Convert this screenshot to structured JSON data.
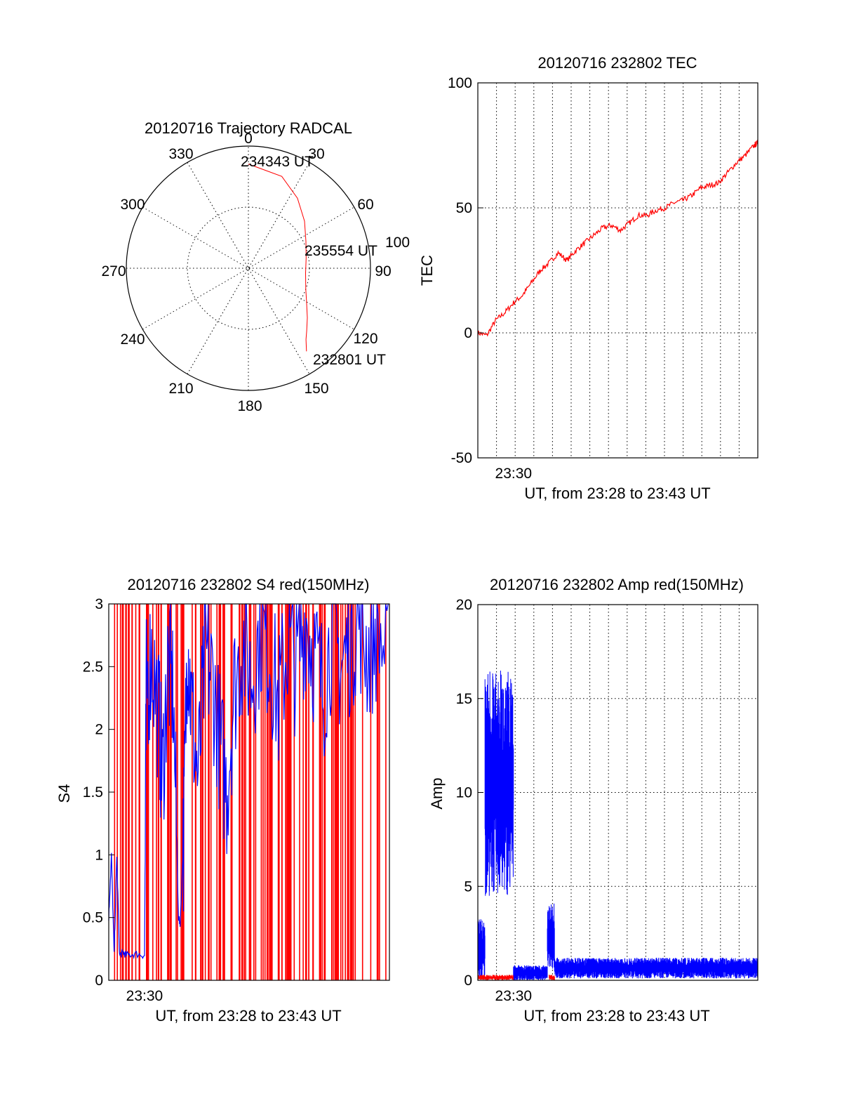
{
  "colors": {
    "red": "#ff0000",
    "blue": "#0000ff",
    "axis": "#000000"
  },
  "chart_data": [
    {
      "type": "polar",
      "title": "20120716 Trajectory RADCAL",
      "angle_labels": [
        "0",
        "30",
        "60",
        "90",
        "120",
        "150",
        "180",
        "210",
        "240",
        "270",
        "300",
        "330"
      ],
      "radius_labels": [
        "100"
      ],
      "trajectory": {
        "color": "#ff0000",
        "points": [
          {
            "az": 0,
            "r": 85.3
          },
          {
            "az": 20,
            "r": 80
          },
          {
            "az": 35,
            "r": 70
          },
          {
            "az": 50,
            "r": 60
          },
          {
            "az": 65,
            "r": 52
          },
          {
            "az": 80,
            "r": 48
          },
          {
            "az": 95,
            "r": 47
          },
          {
            "az": 110,
            "r": 50
          },
          {
            "az": 120,
            "r": 55
          },
          {
            "az": 130,
            "r": 63
          },
          {
            "az": 137,
            "r": 70
          },
          {
            "az": 141,
            "r": 75
          },
          {
            "az": 145,
            "r": 83
          }
        ]
      },
      "annotations": [
        "234343 UT",
        "235554 UT",
        "232801 UT"
      ]
    },
    {
      "type": "line",
      "title": "20120716 232802 TEC",
      "xlabel": "UT, from 23:28 to 23:43 UT",
      "ylabel": "TEC",
      "xlim_minutes": [
        0,
        15.7
      ],
      "ylim": [
        -50,
        100
      ],
      "yticks": [
        "100",
        "50",
        "0",
        "-50"
      ],
      "xticks": [
        {
          "t": 2,
          "label": "23:30"
        }
      ],
      "series": [
        {
          "color": "#ff0000",
          "x": [
            0,
            0.5,
            1,
            1.5,
            2,
            2.5,
            3,
            3.5,
            4,
            4.5,
            5,
            5.5,
            6,
            6.5,
            7,
            7.5,
            8,
            8.5,
            9,
            9.5,
            10,
            10.5,
            11,
            11.5,
            12,
            12.5,
            13,
            13.5,
            14,
            14.5,
            15,
            15.5,
            15.7
          ],
          "y": [
            0,
            -1,
            5,
            8,
            12,
            15,
            20,
            25,
            28,
            32,
            29,
            33,
            36,
            39,
            42,
            43,
            41,
            44,
            47,
            47,
            49,
            50,
            52,
            53,
            55,
            58,
            59,
            60,
            64,
            68,
            71,
            75,
            76
          ]
        }
      ]
    },
    {
      "type": "line",
      "title": "20120716 232802 S4 red(150MHz)",
      "xlabel": "UT, from 23:28 to 23:43 UT",
      "ylabel": "S4",
      "xlim_minutes": [
        0,
        15.7
      ],
      "ylim": [
        0,
        3
      ],
      "yticks": [
        "3",
        "2.5",
        "2",
        "1.5",
        "1",
        "0.5",
        "0"
      ],
      "xticks": [
        {
          "t": 2,
          "label": "23:30"
        }
      ],
      "series": [
        {
          "color": "#ff0000",
          "style": "dense vertical spikes from 0 to 3 across the whole range"
        },
        {
          "color": "#0000ff",
          "x": [
            0,
            0.15,
            0.3,
            0.45,
            0.6,
            0.8,
            1,
            1.5,
            2,
            2.1,
            2.4,
            2.8,
            3,
            3.3,
            3.6,
            3.9,
            4,
            4.2,
            4.4,
            4.6,
            5,
            5.4,
            5.8,
            6.2,
            6.6,
            7,
            7.5,
            8,
            8.5,
            9,
            9.5,
            10,
            10.5,
            11,
            11.5,
            12,
            12.5,
            13,
            13.5,
            14,
            14.5,
            15,
            15.7
          ],
          "y": [
            0.5,
            1.0,
            0.2,
            1.0,
            0.2,
            0.22,
            0.2,
            0.21,
            0.2,
            2.3,
            2.6,
            2.1,
            1.6,
            2.5,
            2.3,
            0.5,
            0.45,
            1.2,
            2.8,
            2.2,
            1.6,
            2.6,
            2.4,
            1.9,
            1.5,
            2.3,
            2.7,
            2.4,
            2.8,
            2.6,
            2.2,
            2.7,
            2.5,
            2.9,
            2.6,
            2.3,
            2.8,
            2.5,
            2.7,
            2.9,
            2.6,
            2.8,
            2.5
          ]
        }
      ]
    },
    {
      "type": "line",
      "title": "20120716 232802 Amp red(150MHz)",
      "xlabel": "UT, from 23:28 to 23:43 UT",
      "ylabel": "Amp",
      "xlim_minutes": [
        0,
        15.7
      ],
      "ylim": [
        0,
        20
      ],
      "yticks": [
        "20",
        "15",
        "10",
        "5",
        "0"
      ],
      "xticks": [
        {
          "t": 2,
          "label": "23:30"
        }
      ],
      "series": [
        {
          "color": "#0000ff",
          "segments": [
            {
              "x0": 0,
              "x1": 0.4,
              "lo": 0,
              "hi": 3.3
            },
            {
              "x0": 0.4,
              "x1": 2.0,
              "lo": 4.5,
              "hi": 16.5
            },
            {
              "x0": 2.0,
              "x1": 3.9,
              "lo": 0,
              "hi": 0.8
            },
            {
              "x0": 3.9,
              "x1": 4.3,
              "lo": 0.5,
              "hi": 4.2
            },
            {
              "x0": 4.3,
              "x1": 15.7,
              "lo": 0.1,
              "hi": 1.2
            }
          ]
        },
        {
          "color": "#ff0000",
          "segments": [
            {
              "x0": 0,
              "x1": 2.0,
              "lo": 0,
              "hi": 0.3
            },
            {
              "x0": 4.0,
              "x1": 4.3,
              "lo": 0,
              "hi": 0.3
            }
          ]
        }
      ]
    }
  ]
}
